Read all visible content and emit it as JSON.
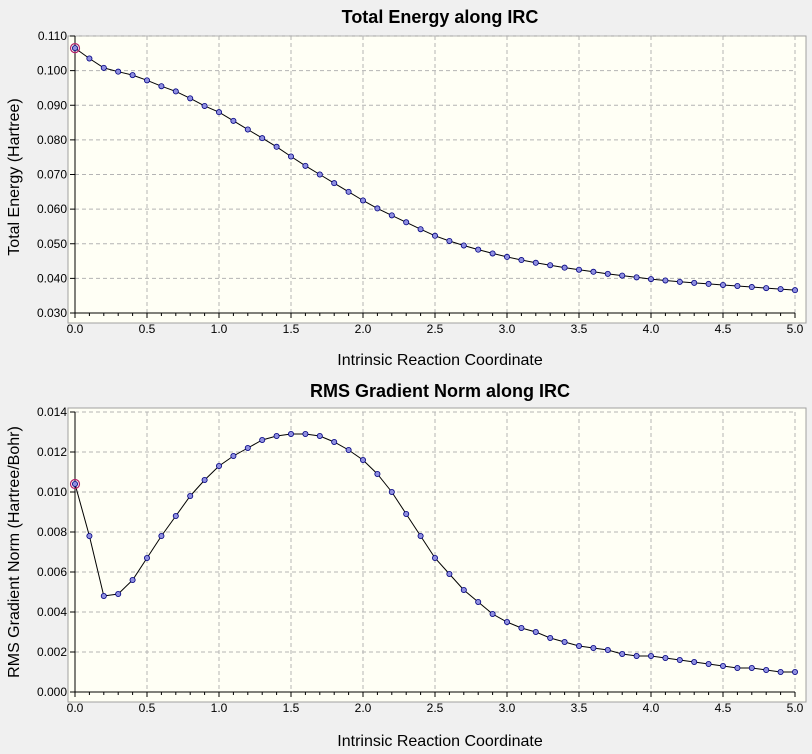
{
  "colors": {
    "background": "#f0f0f0",
    "plot_background": "#fffff5",
    "line": "#000000",
    "marker_fill": "#8f8fe0",
    "marker_stroke": "#000080",
    "highlight": "#b0206a",
    "grid": "#b4b4b4"
  },
  "chart_data": [
    {
      "type": "line",
      "title": "Total Energy along IRC",
      "xlabel": "Intrinsic Reaction Coordinate",
      "ylabel": "Total Energy (Hartree)",
      "xlim": [
        0.0,
        5.0
      ],
      "ylim": [
        0.03,
        0.11
      ],
      "xticks": [
        "0.0",
        "0.5",
        "1.0",
        "1.5",
        "2.0",
        "2.5",
        "3.0",
        "3.5",
        "4.0",
        "4.5",
        "5.0"
      ],
      "yticks": [
        "0.030",
        "0.040",
        "0.050",
        "0.060",
        "0.070",
        "0.080",
        "0.090",
        "0.100",
        "0.110"
      ],
      "grid": true,
      "markers": true,
      "highlighted_point": "first",
      "series": [
        {
          "x": [
            0.0,
            0.1,
            0.2,
            0.3,
            0.4,
            0.5,
            0.6,
            0.7,
            0.8,
            0.9,
            1.0,
            1.1,
            1.2,
            1.3,
            1.4,
            1.5,
            1.6,
            1.7,
            1.8,
            1.9,
            2.0,
            2.1,
            2.2,
            2.3,
            2.4,
            2.5,
            2.6,
            2.7,
            2.8,
            2.9,
            3.0,
            3.1,
            3.2,
            3.3,
            3.4,
            3.5,
            3.6,
            3.7,
            3.8,
            3.9,
            4.0,
            4.1,
            4.2,
            4.3,
            4.4,
            4.5,
            4.6,
            4.7,
            4.8,
            4.9,
            5.0
          ],
          "y": [
            0.1065,
            0.1035,
            0.1008,
            0.0997,
            0.0987,
            0.0972,
            0.0955,
            0.094,
            0.092,
            0.0898,
            0.088,
            0.0855,
            0.083,
            0.0805,
            0.078,
            0.0752,
            0.0725,
            0.07,
            0.0675,
            0.065,
            0.0625,
            0.0602,
            0.0582,
            0.0562,
            0.0542,
            0.0523,
            0.0508,
            0.0495,
            0.0483,
            0.0472,
            0.0462,
            0.0453,
            0.0445,
            0.0438,
            0.0431,
            0.0425,
            0.0419,
            0.0413,
            0.0408,
            0.0403,
            0.0398,
            0.0394,
            0.039,
            0.0387,
            0.0384,
            0.0381,
            0.0378,
            0.0375,
            0.0372,
            0.0369,
            0.0366
          ]
        }
      ]
    },
    {
      "type": "line",
      "title": "RMS Gradient Norm along IRC",
      "xlabel": "Intrinsic Reaction Coordinate",
      "ylabel": "RMS Gradient Norm (Hartree/Bohr)",
      "xlim": [
        0.0,
        5.0
      ],
      "ylim": [
        0.0,
        0.014
      ],
      "xticks": [
        "0.0",
        "0.5",
        "1.0",
        "1.5",
        "2.0",
        "2.5",
        "3.0",
        "3.5",
        "4.0",
        "4.5",
        "5.0"
      ],
      "yticks": [
        "0.000",
        "0.002",
        "0.004",
        "0.006",
        "0.008",
        "0.010",
        "0.012",
        "0.014"
      ],
      "grid": true,
      "markers": true,
      "highlighted_point": "first",
      "series": [
        {
          "x": [
            0.0,
            0.1,
            0.2,
            0.3,
            0.4,
            0.5,
            0.6,
            0.7,
            0.8,
            0.9,
            1.0,
            1.1,
            1.2,
            1.3,
            1.4,
            1.5,
            1.6,
            1.7,
            1.8,
            1.9,
            2.0,
            2.1,
            2.2,
            2.3,
            2.4,
            2.5,
            2.6,
            2.7,
            2.8,
            2.9,
            3.0,
            3.1,
            3.2,
            3.3,
            3.4,
            3.5,
            3.6,
            3.7,
            3.8,
            3.9,
            4.0,
            4.1,
            4.2,
            4.3,
            4.4,
            4.5,
            4.6,
            4.7,
            4.8,
            4.9,
            5.0
          ],
          "y": [
            0.0104,
            0.0078,
            0.0048,
            0.0049,
            0.0056,
            0.0067,
            0.0078,
            0.0088,
            0.0098,
            0.0106,
            0.0113,
            0.0118,
            0.0122,
            0.0126,
            0.0128,
            0.0129,
            0.0129,
            0.0128,
            0.0125,
            0.0121,
            0.0116,
            0.0109,
            0.01,
            0.0089,
            0.0078,
            0.0067,
            0.0059,
            0.0051,
            0.0045,
            0.0039,
            0.0035,
            0.0032,
            0.003,
            0.0027,
            0.0025,
            0.0023,
            0.0022,
            0.0021,
            0.0019,
            0.0018,
            0.0018,
            0.0017,
            0.0016,
            0.0015,
            0.0014,
            0.0013,
            0.0012,
            0.0012,
            0.0011,
            0.001,
            0.001
          ]
        }
      ]
    }
  ]
}
